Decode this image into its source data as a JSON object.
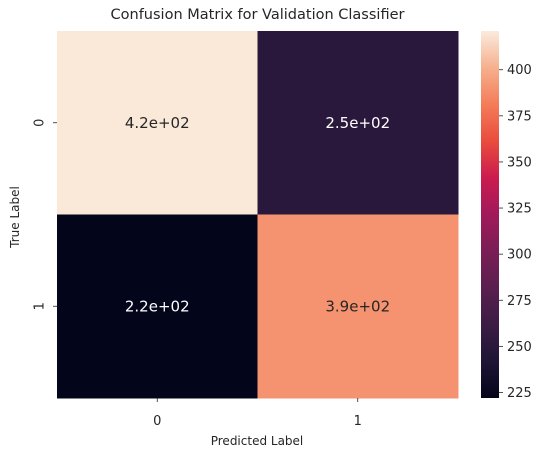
{
  "chart_data": {
    "type": "heatmap",
    "title": "Confusion Matrix for Validation Classifier",
    "xlabel": "Predicted Label",
    "ylabel": "True Label",
    "x_categories": [
      "0",
      "1"
    ],
    "y_categories": [
      "0",
      "1"
    ],
    "values": [
      [
        420,
        250
      ],
      [
        220,
        390
      ]
    ],
    "annotations": [
      [
        "4.2e+02",
        "2.5e+02"
      ],
      [
        "2.2e+02",
        "3.9e+02"
      ]
    ],
    "colorbar": {
      "min": 222,
      "max": 421,
      "ticks": [
        "225",
        "250",
        "275",
        "300",
        "325",
        "350",
        "375",
        "400"
      ]
    },
    "colormap": "rocket",
    "grid": false
  }
}
